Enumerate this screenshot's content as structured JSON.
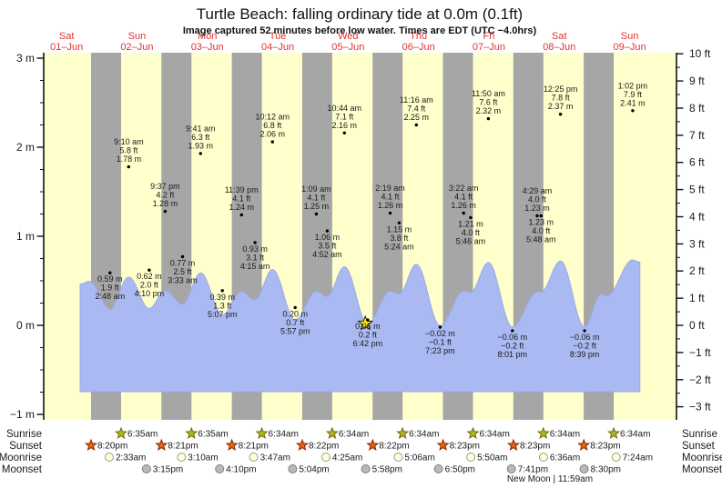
{
  "title": "Turtle Beach: falling  ordinary tide at 0.0m (0.1ft)",
  "subtitle": "Image captured 52 minutes before low water. Times are EDT (UTC −4.0hrs)",
  "colors": {
    "day_band": "#ffffcc",
    "night_band": "#a6a6a6",
    "tide_fill": "#aab9f2",
    "tide_stroke": "#9aabe8",
    "date_red": "#e23333",
    "text_black": "#1a1a1a",
    "axis": "#111111",
    "sunrise_star_fill": "#b3b32a",
    "sunrise_star_stroke": "#6b6b00",
    "sunset_star_fill": "#e26412",
    "sunset_star_stroke": "#8b2500",
    "moonrise_circle_fill": "#ffffd6",
    "moonrise_circle_stroke": "#999999",
    "moonset_circle_fill": "#b9b9b9",
    "moonset_circle_stroke": "#808080",
    "current_star_fill": "#ffee00",
    "current_star_stroke": "#222222"
  },
  "chart_data": {
    "type": "area",
    "title": "Turtle Beach: falling  ordinary tide at 0.0m (0.1ft)",
    "subtitle": "Image captured 52 minutes before low water. Times are EDT (UTC −4.0hrs)",
    "x_axis_days": [
      {
        "weekday": "Sat",
        "date": "01–Jun",
        "noon_t": 12
      },
      {
        "weekday": "Sun",
        "date": "02–Jun",
        "noon_t": 36
      },
      {
        "weekday": "Mon",
        "date": "03–Jun",
        "noon_t": 60
      },
      {
        "weekday": "Tue",
        "date": "04–Jun",
        "noon_t": 84
      },
      {
        "weekday": "Wed",
        "date": "05–Jun",
        "noon_t": 108
      },
      {
        "weekday": "Thu",
        "date": "06–Jun",
        "noon_t": 132
      },
      {
        "weekday": "Fri",
        "date": "07–Jun",
        "noon_t": 156
      },
      {
        "weekday": "Sat",
        "date": "08–Jun",
        "noon_t": 180
      },
      {
        "weekday": "Sun",
        "date": "09–Jun",
        "noon_t": 204
      }
    ],
    "y_axis_left_m": [
      {
        "v": 3,
        "label": "3 m"
      },
      {
        "v": 2,
        "label": "2 m"
      },
      {
        "v": 1,
        "label": "1 m"
      },
      {
        "v": 0,
        "label": "0 m"
      },
      {
        "v": -1,
        "label": "−1 m"
      }
    ],
    "y_axis_right_ft": [
      {
        "v": 10,
        "label": "10 ft"
      },
      {
        "v": 9,
        "label": "9 ft"
      },
      {
        "v": 8,
        "label": "8 ft"
      },
      {
        "v": 7,
        "label": "7 ft"
      },
      {
        "v": 6,
        "label": "6 ft"
      },
      {
        "v": 5,
        "label": "5 ft"
      },
      {
        "v": 4,
        "label": "4 ft"
      },
      {
        "v": 3,
        "label": "3 ft"
      },
      {
        "v": 2,
        "label": "2 ft"
      },
      {
        "v": 1,
        "label": "1 ft"
      },
      {
        "v": 0,
        "label": "0 ft"
      },
      {
        "v": -1,
        "label": "−1 ft"
      },
      {
        "v": -2,
        "label": "−2 ft"
      },
      {
        "v": -3,
        "label": "−3 ft"
      }
    ],
    "night_bands": {
      "sunset_hour": 20.33,
      "sunrise_hour": 6.58,
      "count": 8
    },
    "tide_events": [
      {
        "type": "low",
        "t": 26.8,
        "m": 0.59,
        "m_label": "0.59 m",
        "ft_label": "1.9 ft",
        "time_label": "2:48 am"
      },
      {
        "type": "high",
        "t": 33.17,
        "m": 1.78,
        "m_label": "1.78 m",
        "ft_label": "5.8 ft",
        "time_label": "9:10 am"
      },
      {
        "type": "low",
        "t": 40.17,
        "m": 0.62,
        "m_label": "0.62 m",
        "ft_label": "2.0 ft",
        "time_label": "4:10 pm"
      },
      {
        "type": "high",
        "t": 45.62,
        "m": 1.28,
        "m_label": "1.28 m",
        "ft_label": "4.2 ft",
        "time_label": "9:37 pm"
      },
      {
        "type": "low",
        "t": 51.55,
        "m": 0.77,
        "m_label": "0.77 m",
        "ft_label": "2.5 ft",
        "time_label": "3:33 am"
      },
      {
        "type": "high",
        "t": 57.68,
        "m": 1.93,
        "m_label": "1.93 m",
        "ft_label": "6.3 ft",
        "time_label": "9:41 am"
      },
      {
        "type": "low",
        "t": 65.12,
        "m": 0.39,
        "m_label": "0.39 m",
        "ft_label": "1.3 ft",
        "time_label": "5:07 pm"
      },
      {
        "type": "high",
        "t": 71.65,
        "m": 1.24,
        "m_label": "1.24 m",
        "ft_label": "4.1 ft",
        "time_label": "11:39 pm"
      },
      {
        "type": "low",
        "t": 76.25,
        "m": 0.93,
        "m_label": "0.93 m",
        "ft_label": "3.1 ft",
        "time_label": "4:15 am"
      },
      {
        "type": "high",
        "t": 82.2,
        "m": 2.06,
        "m_label": "2.06 m",
        "ft_label": "6.8 ft",
        "time_label": "10:12 am"
      },
      {
        "type": "low",
        "t": 89.95,
        "m": 0.2,
        "m_label": "0.20 m",
        "ft_label": "0.7 ft",
        "time_label": "5:57 pm"
      },
      {
        "type": "high",
        "t": 97.15,
        "m": 1.25,
        "m_label": "1.25 m",
        "ft_label": "4.1 ft",
        "time_label": "1:09 am"
      },
      {
        "type": "low",
        "t": 100.87,
        "m": 1.06,
        "m_label": "1.06 m",
        "ft_label": "3.5 ft",
        "time_label": "4:52 am"
      },
      {
        "type": "high",
        "t": 106.73,
        "m": 2.16,
        "m_label": "2.16 m",
        "ft_label": "7.1 ft",
        "time_label": "10:44 am"
      },
      {
        "type": "low",
        "t": 114.7,
        "m": 0.06,
        "m_label": "0.06 m",
        "ft_label": "0.2 ft",
        "time_label": "6:42 pm"
      },
      {
        "type": "high",
        "t": 122.32,
        "m": 1.26,
        "m_label": "1.26 m",
        "ft_label": "4.1 ft",
        "time_label": "2:19 am"
      },
      {
        "type": "low",
        "t": 125.4,
        "m": 1.15,
        "m_label": "1.15 m",
        "ft_label": "3.8 ft",
        "time_label": "5:24 am"
      },
      {
        "type": "high",
        "t": 131.27,
        "m": 2.25,
        "m_label": "2.25 m",
        "ft_label": "7.4 ft",
        "time_label": "11:16 am"
      },
      {
        "type": "low",
        "t": 139.38,
        "m": -0.02,
        "m_label": "−0.02 m",
        "ft_label": "−0.1 ft",
        "time_label": "7:23 pm"
      },
      {
        "type": "high",
        "t": 147.37,
        "m": 1.26,
        "m_label": "1.26 m",
        "ft_label": "4.1 ft",
        "time_label": "3:22 am"
      },
      {
        "type": "low",
        "t": 149.77,
        "m": 1.21,
        "m_label": "1.21 m",
        "ft_label": "4.0 ft",
        "time_label": "5:46 am"
      },
      {
        "type": "high",
        "t": 155.83,
        "m": 2.32,
        "m_label": "2.32 m",
        "ft_label": "7.6 ft",
        "time_label": "11:50 am"
      },
      {
        "type": "low",
        "t": 164.02,
        "m": -0.06,
        "m_label": "−0.06 m",
        "ft_label": "−0.2 ft",
        "time_label": "8:01 pm"
      },
      {
        "type": "high",
        "t": 172.48,
        "m": 1.23,
        "m_label": "1.23 m",
        "ft_label": "4.0 ft",
        "time_label": "4:29 am"
      },
      {
        "type": "low",
        "t": 173.8,
        "m": 1.23,
        "m_label": "1.23 m",
        "ft_label": "4.0 ft",
        "time_label": "5:48 am"
      },
      {
        "type": "high",
        "t": 180.42,
        "m": 2.37,
        "m_label": "2.37 m",
        "ft_label": "7.8 ft",
        "time_label": "12:25 pm"
      },
      {
        "type": "low",
        "t": 188.65,
        "m": -0.06,
        "m_label": "−0.06 m",
        "ft_label": "−0.2 ft",
        "time_label": "8:39 pm"
      },
      {
        "type": "high",
        "t": 205.03,
        "m": 2.41,
        "m_label": "2.41 m",
        "ft_label": "7.9 ft",
        "time_label": "1:02 pm"
      }
    ],
    "curve_extrema": [
      [
        16.6,
        1.52
      ],
      [
        19.8,
        1.62
      ],
      [
        26.8,
        0.59
      ],
      [
        33.17,
        1.78
      ],
      [
        40.17,
        0.62
      ],
      [
        45.62,
        1.28
      ],
      [
        51.55,
        0.77
      ],
      [
        57.68,
        1.93
      ],
      [
        65.12,
        0.39
      ],
      [
        71.65,
        1.24
      ],
      [
        76.25,
        0.93
      ],
      [
        82.2,
        2.06
      ],
      [
        89.95,
        0.2
      ],
      [
        97.15,
        1.25
      ],
      [
        100.87,
        1.06
      ],
      [
        106.73,
        2.16
      ],
      [
        114.7,
        0.06
      ],
      [
        122.32,
        1.26
      ],
      [
        125.4,
        1.15
      ],
      [
        131.27,
        2.25
      ],
      [
        139.38,
        -0.02
      ],
      [
        147.37,
        1.26
      ],
      [
        149.77,
        1.21
      ],
      [
        155.83,
        2.32
      ],
      [
        164.02,
        -0.06
      ],
      [
        172.48,
        1.23
      ],
      [
        173.8,
        1.23
      ],
      [
        180.42,
        2.37
      ],
      [
        188.65,
        -0.06
      ],
      [
        194.2,
        1.14
      ],
      [
        196.2,
        1.08
      ],
      [
        205.03,
        2.41
      ],
      [
        207.5,
        2.33
      ]
    ],
    "current_marker": {
      "t": 113.85,
      "m": 0.1
    },
    "sun_moon": {
      "rows": [
        {
          "label": "Sunrise",
          "icon": "sunrise-star",
          "events": [
            [
              "6:35am",
              30.58
            ],
            [
              "6:35am",
              54.58
            ],
            [
              "6:34am",
              78.57
            ],
            [
              "6:34am",
              102.57
            ],
            [
              "6:34am",
              126.57
            ],
            [
              "6:34am",
              150.57
            ],
            [
              "6:34am",
              174.57
            ],
            [
              "6:34am",
              198.57
            ]
          ]
        },
        {
          "label": "Sunset",
          "icon": "sunset-star",
          "events": [
            [
              "8:20pm",
              20.33
            ],
            [
              "8:21pm",
              44.35
            ],
            [
              "8:21pm",
              68.35
            ],
            [
              "8:22pm",
              92.37
            ],
            [
              "8:22pm",
              116.37
            ],
            [
              "8:23pm",
              140.38
            ],
            [
              "8:23pm",
              164.38
            ],
            [
              "8:23pm",
              188.38
            ]
          ]
        },
        {
          "label": "Moonrise",
          "icon": "moonrise-circle",
          "events": [
            [
              "2:33am",
              26.55
            ],
            [
              "3:10am",
              51.17
            ],
            [
              "3:47am",
              75.78
            ],
            [
              "4:25am",
              100.42
            ],
            [
              "5:06am",
              125.1
            ],
            [
              "5:50am",
              149.83
            ],
            [
              "6:36am",
              174.6
            ],
            [
              "7:24am",
              199.4
            ]
          ]
        },
        {
          "label": "Moonset",
          "icon": "moonset-circle",
          "events": [
            [
              "3:15pm",
              39.25
            ],
            [
              "4:10pm",
              64.17
            ],
            [
              "5:04pm",
              89.07
            ],
            [
              "5:58pm",
              113.97
            ],
            [
              "6:50pm",
              138.83
            ],
            [
              "7:41pm",
              163.68
            ],
            [
              "8:30pm",
              188.5
            ]
          ]
        }
      ],
      "footer": "New Moon | 11:59am"
    }
  }
}
